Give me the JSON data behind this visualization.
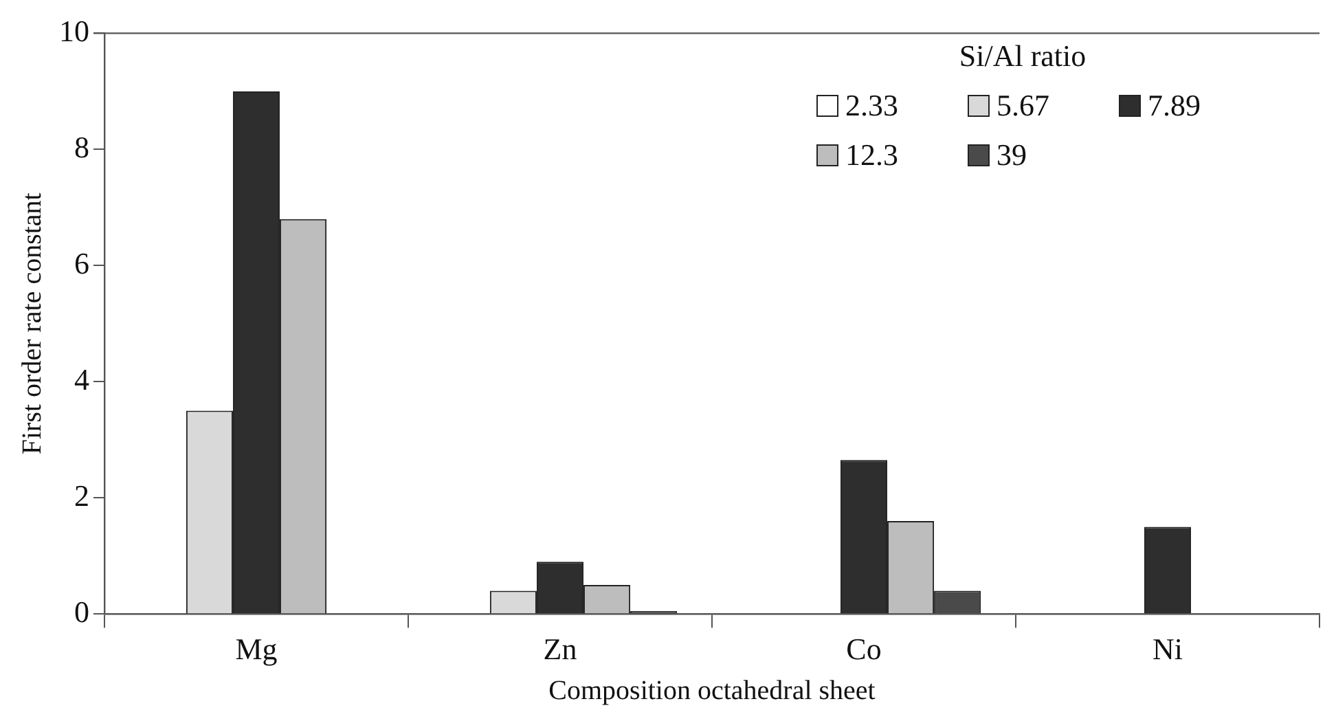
{
  "chart_data": {
    "type": "bar",
    "xlabel": "Composition octahedral sheet",
    "ylabel": "First order rate constant",
    "legend_title": "Si/Al ratio",
    "categories": [
      "Mg",
      "Zn",
      "Co",
      "Ni"
    ],
    "series": [
      {
        "name": "2.33",
        "color": "#ffffff",
        "values": [
          0,
          0,
          0,
          0
        ]
      },
      {
        "name": "5.67",
        "color": "#d9d9d9",
        "values": [
          3.5,
          0.4,
          0,
          0
        ]
      },
      {
        "name": "7.89",
        "color": "#2e2e2e",
        "values": [
          9,
          0.9,
          2.65,
          1.5
        ]
      },
      {
        "name": "12.3",
        "color": "#bdbdbd",
        "values": [
          6.8,
          0.5,
          1.6,
          0
        ]
      },
      {
        "name": "39",
        "color": "#4a4a4a",
        "values": [
          0,
          0.05,
          0.4,
          0
        ]
      }
    ],
    "ylim": [
      0,
      10
    ],
    "yticks": [
      0,
      2,
      4,
      6,
      8,
      10
    ],
    "grid": false,
    "legend": "top right"
  }
}
